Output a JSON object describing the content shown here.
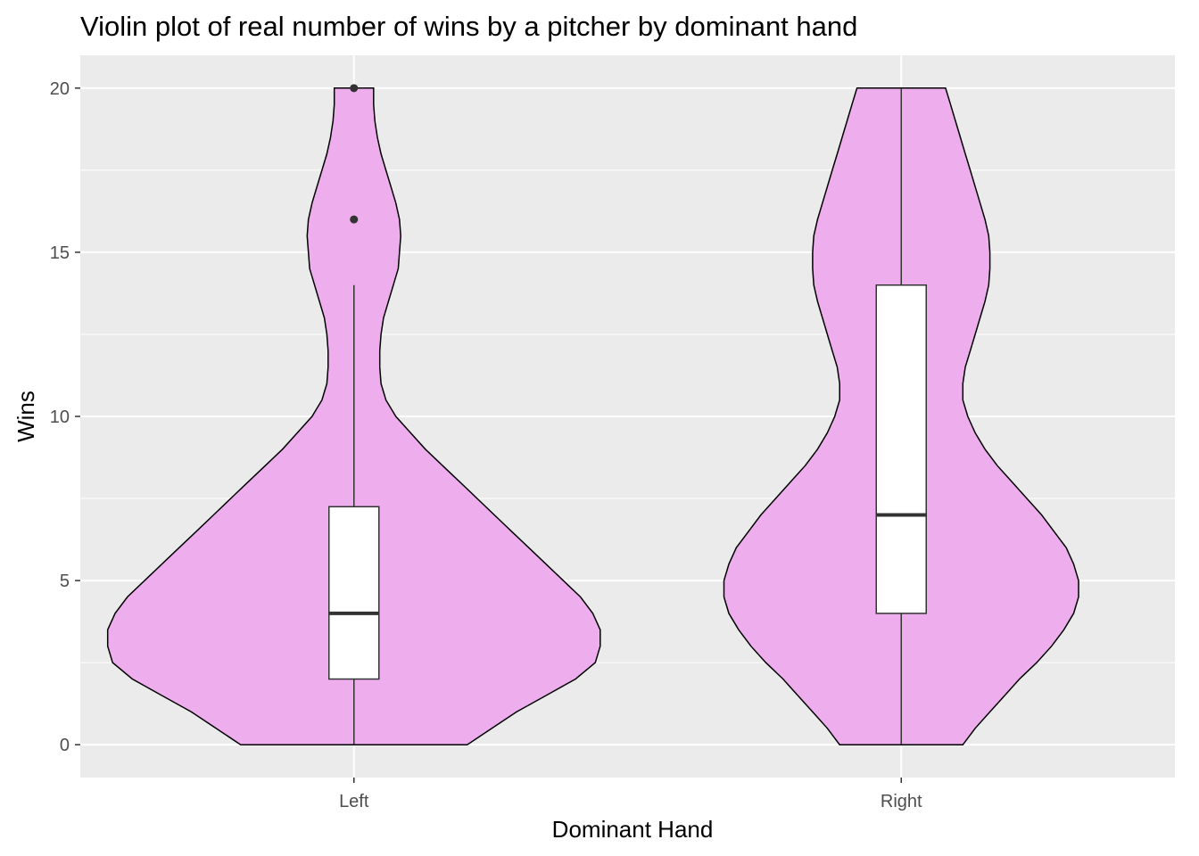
{
  "chart_data": {
    "type": "violin",
    "title": "Violin plot of real number of wins by a pitcher by dominant hand",
    "xlabel": "Dominant Hand",
    "ylabel": "Wins",
    "categories": [
      "Left",
      "Right"
    ],
    "ylim": [
      -1,
      21
    ],
    "y_ticks": [
      0,
      5,
      10,
      15,
      20
    ],
    "y_tick_labels": [
      "0",
      "5",
      "10",
      "15",
      "20"
    ],
    "grid": true,
    "legend": "none",
    "colors": {
      "panel": "#EBEBEB",
      "grid": "#FFFFFF",
      "violin_fill": "#EEAEEE",
      "violin_outline": "#000000",
      "box_fill": "#FFFFFF",
      "box_line": "#333333",
      "tick_text": "#4D4D4D"
    },
    "violins": [
      {
        "category": "Left",
        "density_profile": [
          [
            0,
            0.46
          ],
          [
            0.5,
            0.56
          ],
          [
            1,
            0.66
          ],
          [
            1.5,
            0.78
          ],
          [
            2,
            0.9
          ],
          [
            2.5,
            0.98
          ],
          [
            3,
            1.0
          ],
          [
            3.5,
            1.0
          ],
          [
            4,
            0.97
          ],
          [
            4.5,
            0.92
          ],
          [
            5,
            0.85
          ],
          [
            5.5,
            0.78
          ],
          [
            6,
            0.71
          ],
          [
            6.5,
            0.64
          ],
          [
            7,
            0.57
          ],
          [
            7.5,
            0.5
          ],
          [
            8,
            0.43
          ],
          [
            8.5,
            0.36
          ],
          [
            9,
            0.29
          ],
          [
            9.5,
            0.23
          ],
          [
            10,
            0.17
          ],
          [
            10.5,
            0.13
          ],
          [
            11,
            0.11
          ],
          [
            11.5,
            0.105
          ],
          [
            12,
            0.105
          ],
          [
            12.5,
            0.11
          ],
          [
            13,
            0.12
          ],
          [
            13.5,
            0.14
          ],
          [
            14,
            0.16
          ],
          [
            14.5,
            0.18
          ],
          [
            15,
            0.185
          ],
          [
            15.5,
            0.19
          ],
          [
            16,
            0.185
          ],
          [
            16.5,
            0.17
          ],
          [
            17,
            0.15
          ],
          [
            17.5,
            0.13
          ],
          [
            18,
            0.11
          ],
          [
            18.5,
            0.095
          ],
          [
            19,
            0.085
          ],
          [
            19.5,
            0.08
          ],
          [
            20,
            0.08
          ]
        ],
        "box": {
          "lower_whisker": 0,
          "q1": 2,
          "median": 4,
          "q3": 7.25,
          "upper_whisker": 14
        },
        "outliers": [
          16,
          20
        ]
      },
      {
        "category": "Right",
        "density_profile": [
          [
            0,
            0.25
          ],
          [
            0.5,
            0.3
          ],
          [
            1,
            0.36
          ],
          [
            1.5,
            0.42
          ],
          [
            2,
            0.48
          ],
          [
            2.5,
            0.55
          ],
          [
            3,
            0.61
          ],
          [
            3.5,
            0.66
          ],
          [
            4,
            0.7
          ],
          [
            4.5,
            0.72
          ],
          [
            5,
            0.72
          ],
          [
            5.5,
            0.7
          ],
          [
            6,
            0.67
          ],
          [
            6.5,
            0.62
          ],
          [
            7,
            0.57
          ],
          [
            7.5,
            0.51
          ],
          [
            8,
            0.45
          ],
          [
            8.5,
            0.39
          ],
          [
            9,
            0.34
          ],
          [
            9.5,
            0.3
          ],
          [
            10,
            0.27
          ],
          [
            10.5,
            0.25
          ],
          [
            11,
            0.25
          ],
          [
            11.5,
            0.26
          ],
          [
            12,
            0.28
          ],
          [
            12.5,
            0.3
          ],
          [
            13,
            0.32
          ],
          [
            13.5,
            0.34
          ],
          [
            14,
            0.355
          ],
          [
            14.5,
            0.36
          ],
          [
            15,
            0.36
          ],
          [
            15.5,
            0.355
          ],
          [
            16,
            0.34
          ],
          [
            16.5,
            0.32
          ],
          [
            17,
            0.3
          ],
          [
            17.5,
            0.28
          ],
          [
            18,
            0.26
          ],
          [
            18.5,
            0.24
          ],
          [
            19,
            0.22
          ],
          [
            19.5,
            0.2
          ],
          [
            20,
            0.18
          ]
        ],
        "box": {
          "lower_whisker": 0,
          "q1": 4,
          "median": 7,
          "q3": 14,
          "upper_whisker": 20
        },
        "outliers": []
      }
    ]
  }
}
